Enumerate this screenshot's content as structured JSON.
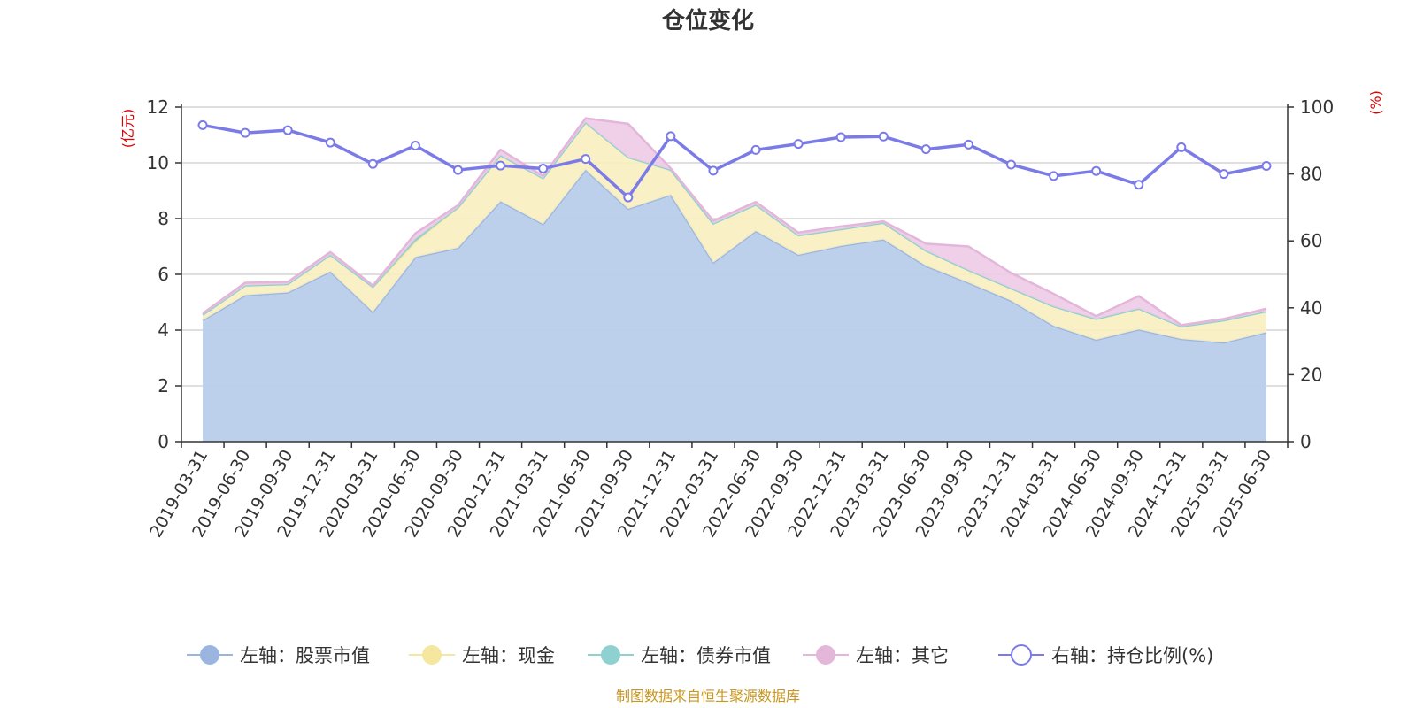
{
  "title": "仓位变化",
  "source": "制图数据来自恒生聚源数据库",
  "left_axis_unit": "(亿元)",
  "right_axis_unit": "(%)",
  "colors": {
    "stock": "#9ab6e0",
    "stock_fill": "#b9cdea",
    "cash": "#f5e6a0",
    "cash_fill": "#f9eec0",
    "bond": "#8fd1d1",
    "other": "#e3b6da",
    "other_fill": "#eecbe6",
    "ratio": "#7b7be8"
  },
  "chart_data": {
    "type": "area",
    "title": "仓位变化",
    "x": [
      "2019-03-31",
      "2019-06-30",
      "2019-09-30",
      "2019-12-31",
      "2020-03-31",
      "2020-06-30",
      "2020-09-30",
      "2020-12-31",
      "2021-03-31",
      "2021-06-30",
      "2021-09-30",
      "2021-12-31",
      "2022-03-31",
      "2022-06-30",
      "2022-09-30",
      "2022-12-31",
      "2023-03-31",
      "2023-06-30",
      "2023-09-30",
      "2023-12-31",
      "2024-03-31",
      "2024-06-30",
      "2024-09-30",
      "2024-12-31",
      "2025-03-31",
      "2025-06-30"
    ],
    "left_ylim": [
      0,
      12
    ],
    "left_yticks": [
      0,
      2,
      4,
      6,
      8,
      10,
      12
    ],
    "right_ylim": [
      0,
      100
    ],
    "right_yticks": [
      0,
      20,
      40,
      60,
      80,
      100
    ],
    "grid": true,
    "legend_position": "bottom",
    "series": [
      {
        "name": "左轴：股票市值",
        "axis": "left",
        "stacked": true,
        "values": [
          4.35,
          5.25,
          5.35,
          6.1,
          4.65,
          6.62,
          6.95,
          8.62,
          7.8,
          9.75,
          8.35,
          8.85,
          6.42,
          7.55,
          6.7,
          7.02,
          7.25,
          6.3,
          5.7,
          5.05,
          4.15,
          3.65,
          4.02,
          3.68,
          3.55,
          3.92
        ]
      },
      {
        "name": "左轴：现金",
        "axis": "left",
        "stacked": true,
        "values": [
          0.2,
          0.35,
          0.3,
          0.6,
          0.9,
          0.55,
          1.45,
          1.65,
          1.65,
          1.7,
          1.85,
          0.9,
          1.4,
          0.95,
          0.7,
          0.6,
          0.6,
          0.55,
          0.45,
          0.45,
          0.7,
          0.75,
          0.75,
          0.45,
          0.8,
          0.75
        ]
      },
      {
        "name": "左轴：债券市值",
        "axis": "left",
        "stacked": true,
        "values": [
          0,
          0,
          0,
          0,
          0,
          0.1,
          0,
          0,
          0,
          0,
          0,
          0,
          0,
          0,
          0,
          0,
          0,
          0,
          0,
          0,
          0,
          0,
          0,
          0,
          0,
          0
        ]
      },
      {
        "name": "左轴：其它",
        "axis": "left",
        "stacked": true,
        "values": [
          0.05,
          0.1,
          0.08,
          0.1,
          0.05,
          0.2,
          0.08,
          0.2,
          0.08,
          0.15,
          1.2,
          0.05,
          0.1,
          0.1,
          0.1,
          0.1,
          0.05,
          0.25,
          0.85,
          0.55,
          0.45,
          0.1,
          0.45,
          0.05,
          0.05,
          0.1
        ]
      },
      {
        "name": "右轴：持仓比例(%)",
        "axis": "right",
        "type": "line",
        "values": [
          94.6,
          92.3,
          93.1,
          89.4,
          83.0,
          88.5,
          81.2,
          82.5,
          81.6,
          84.5,
          73.0,
          91.3,
          81.0,
          87.2,
          89.0,
          91.0,
          91.2,
          87.4,
          88.8,
          82.8,
          79.4,
          80.9,
          76.8,
          88.0,
          80.0,
          82.4
        ]
      }
    ]
  }
}
